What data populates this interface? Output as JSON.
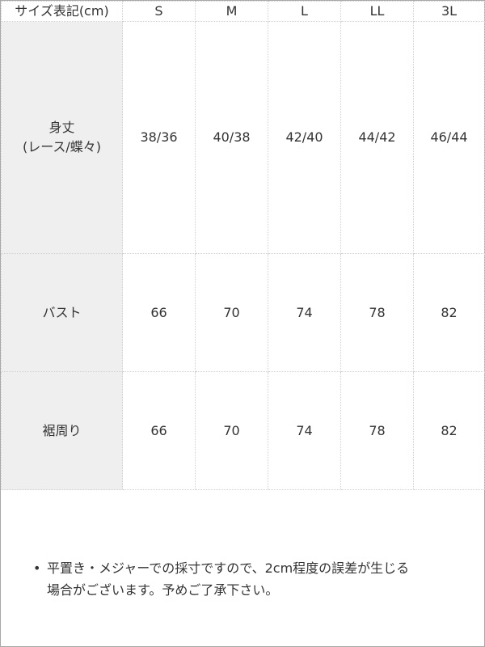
{
  "table": {
    "header": [
      "サイズ表記(cm)",
      "S",
      "M",
      "L",
      "LL",
      "3L"
    ],
    "rows": [
      [
        [
          "身丈",
          "(レース/蝶々)"
        ],
        "38/36",
        "40/38",
        "42/40",
        "44/42",
        "46/44"
      ],
      [
        [
          "バスト"
        ],
        "66",
        "70",
        "74",
        "78",
        "82"
      ],
      [
        [
          "裾周り"
        ],
        "66",
        "70",
        "74",
        "78",
        "82"
      ]
    ]
  },
  "note": {
    "lines": [
      "平置き・メジャーでの採寸ですので、2cm程度の誤差が生じる",
      "場合がございます。予めご了承下さい。"
    ]
  }
}
